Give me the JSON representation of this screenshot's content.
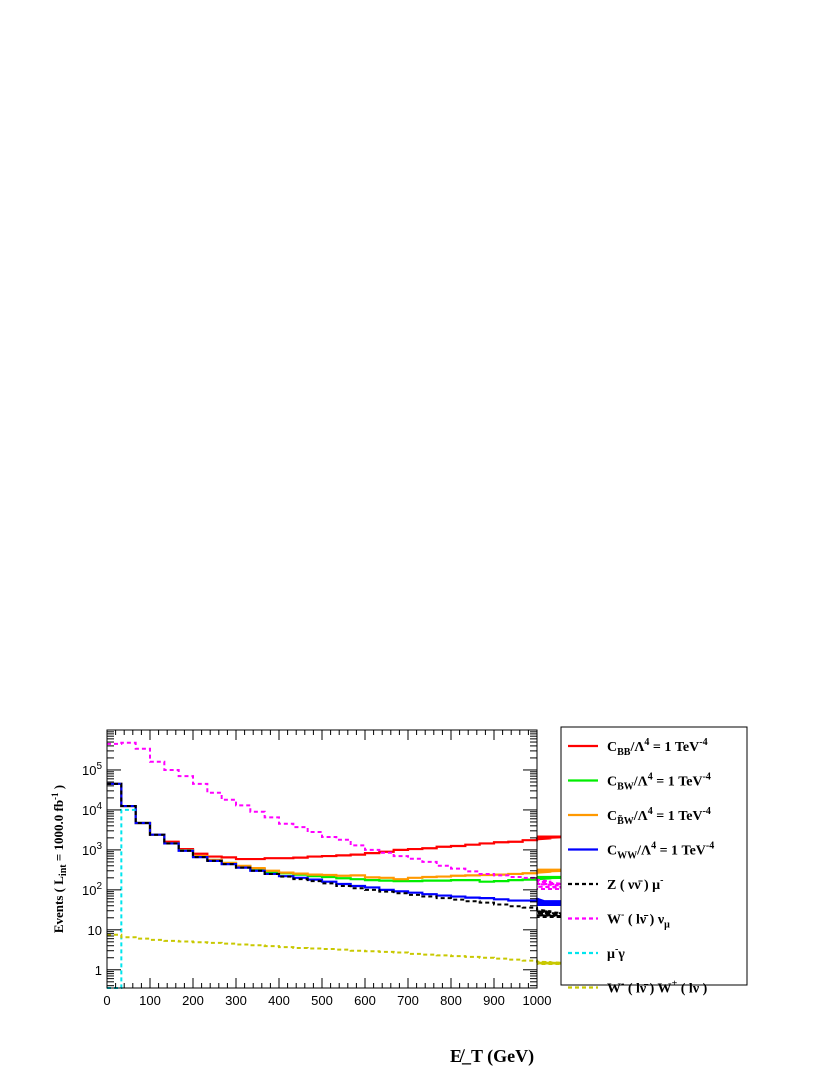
{
  "chart_data": {
    "type": "line",
    "ylabel": "Events ( L_int = 1000.0 fb^-1 )",
    "xlabel": "E̸_T (GeV)",
    "x_ticks": [
      "0",
      "100",
      "200",
      "300",
      "400",
      "500",
      "600",
      "700",
      "800",
      "900",
      "1000"
    ],
    "y_ticks": [
      {
        "value": 1,
        "base": "1",
        "exp": ""
      },
      {
        "value": 10,
        "base": "10",
        "exp": ""
      },
      {
        "value": 100,
        "base": "10",
        "exp": "2"
      },
      {
        "value": 1000,
        "base": "10",
        "exp": "3"
      },
      {
        "value": 10000,
        "base": "10",
        "exp": "4"
      },
      {
        "value": 100000,
        "base": "10",
        "exp": "5"
      }
    ],
    "xlim": [
      0,
      1000
    ],
    "ylim": [
      0.35,
      1000000
    ],
    "log_y": true,
    "bin_width": 33.333,
    "grid": false,
    "legend_position": "right, outside plot",
    "series": [
      {
        "name": "C_BB/Λ^4 = 1 TeV^-4",
        "color": "#ff0000",
        "dash": "solid",
        "values": [
          45000,
          12500,
          4700,
          2400,
          1600,
          1050,
          800,
          680,
          650,
          590,
          590,
          620,
          620,
          640,
          680,
          700,
          730,
          760,
          830,
          900,
          1000,
          1050,
          1100,
          1200,
          1250,
          1350,
          1450,
          1550,
          1600,
          1750,
          1850,
          1950,
          2100,
          2150,
          2150
        ]
      },
      {
        "name": "C_BW/Λ^4 = 1 TeV^-4",
        "color": "#00ee00",
        "dash": "solid",
        "values": [
          45000,
          12500,
          4700,
          2400,
          1450,
          980,
          700,
          560,
          470,
          390,
          330,
          280,
          260,
          240,
          220,
          210,
          195,
          185,
          175,
          170,
          165,
          165,
          170,
          170,
          175,
          175,
          160,
          165,
          175,
          180,
          185,
          195,
          200,
          205,
          210
        ]
      },
      {
        "name": "C_B̃W/Λ^4 = 1 TeV^-4",
        "color": "#ff9900",
        "dash": "solid",
        "values": [
          45000,
          12500,
          4700,
          2400,
          1450,
          980,
          700,
          560,
          470,
          400,
          350,
          300,
          270,
          255,
          240,
          235,
          225,
          230,
          205,
          200,
          185,
          200,
          210,
          215,
          225,
          230,
          235,
          240,
          250,
          260,
          270,
          285,
          300,
          320,
          320
        ]
      },
      {
        "name": "C_WW/Λ^4 = 1 TeV^-4",
        "color": "#0000ff",
        "dash": "solid",
        "values": [
          45000,
          12500,
          4700,
          2400,
          1450,
          950,
          660,
          530,
          440,
          360,
          300,
          250,
          220,
          200,
          180,
          160,
          140,
          125,
          115,
          100,
          92,
          85,
          78,
          72,
          68,
          64,
          62,
          58,
          54,
          54,
          60,
          45,
          52,
          42,
          48
        ]
      },
      {
        "name": "Z ( νν̄ ) μ⁻",
        "color": "#000000",
        "dash": "dashed",
        "values": [
          45000,
          12500,
          4700,
          2400,
          1450,
          950,
          660,
          530,
          440,
          360,
          300,
          250,
          215,
          185,
          165,
          145,
          125,
          110,
          100,
          90,
          82,
          75,
          68,
          62,
          57,
          52,
          48,
          43,
          39,
          36,
          32,
          29,
          26,
          23,
          21
        ]
      },
      {
        "name": "W⁻ ( lν̄ ) ν_μ",
        "color": "#ff00ff",
        "dash": "dashed",
        "values": [
          450000,
          480000,
          340000,
          160000,
          100000,
          70000,
          45000,
          27000,
          18000,
          13000,
          9000,
          6500,
          4500,
          3700,
          2800,
          2100,
          1800,
          1300,
          1000,
          850,
          700,
          600,
          500,
          400,
          340,
          290,
          250,
          230,
          210,
          200,
          180,
          160,
          140,
          120,
          105
        ]
      },
      {
        "name": "μ⁻γ",
        "color": "#00e5ee",
        "dash": "dashed",
        "values": [
          0.01,
          10000
        ]
      },
      {
        "name": "W⁻ ( lν̄ ) W⁺ ( lν )",
        "color": "#c8c800",
        "dash": "dashed",
        "values": [
          7.5,
          6.5,
          6.0,
          5.6,
          5.3,
          5.1,
          4.9,
          4.7,
          4.5,
          4.3,
          4.1,
          3.9,
          3.7,
          3.5,
          3.4,
          3.3,
          3.2,
          3.0,
          2.9,
          2.8,
          2.7,
          2.5,
          2.4,
          2.3,
          2.2,
          2.1,
          2.0,
          1.9,
          1.8,
          1.7,
          1.6,
          1.55,
          1.5,
          1.45,
          1.4
        ]
      }
    ]
  }
}
